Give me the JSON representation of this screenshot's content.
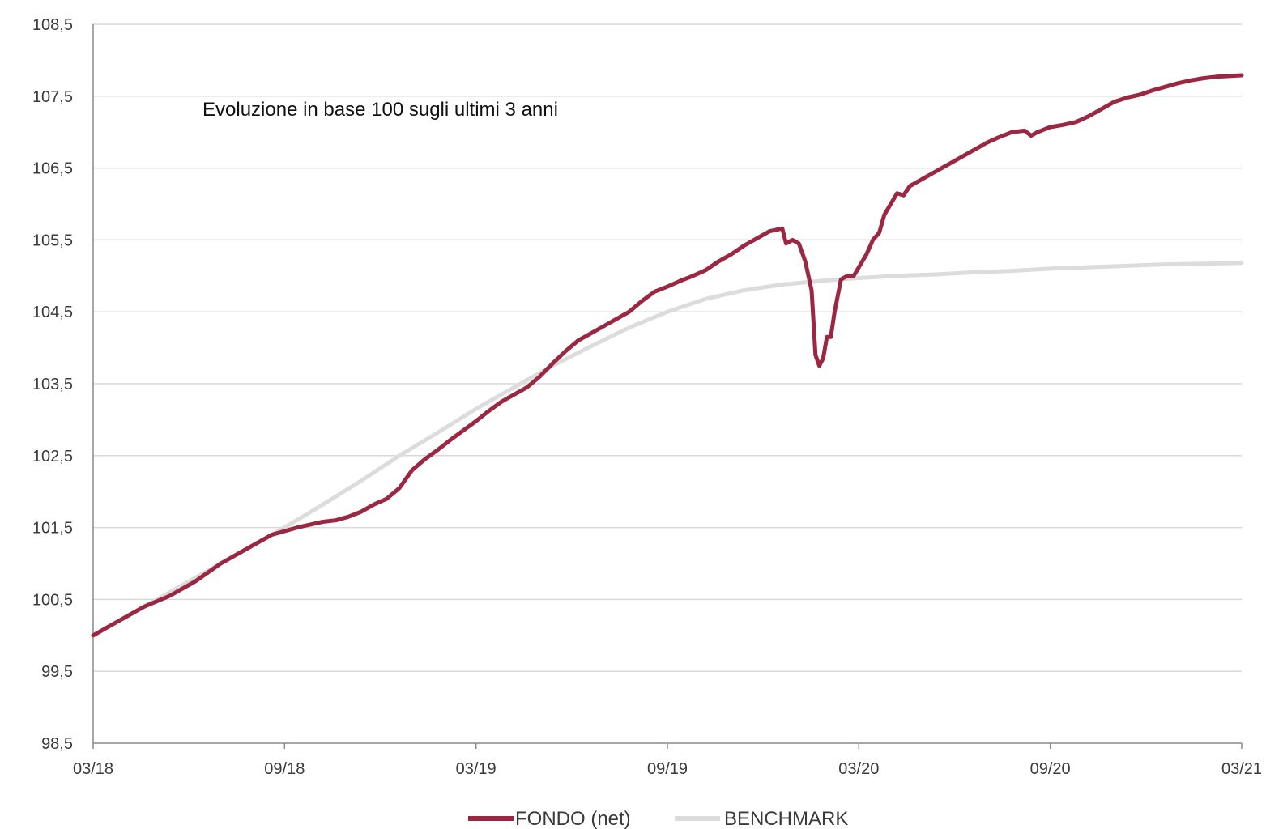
{
  "chart_data": {
    "type": "line",
    "title": "",
    "annotation": "Evoluzione in base 100 sugli ultimi 3 anni",
    "xlabel": "",
    "ylabel": "",
    "ylim": [
      98.5,
      108.5
    ],
    "yticks": [
      "108,5",
      "107,5",
      "106,5",
      "105,5",
      "104,5",
      "103,5",
      "102,5",
      "101,5",
      "100,5",
      "99,5",
      "98,5"
    ],
    "xticks": [
      "03/18",
      "09/18",
      "03/19",
      "09/19",
      "03/20",
      "09/20",
      "03/21"
    ],
    "grid": true,
    "legend_position": "bottom-center",
    "series": [
      {
        "name": "FONDO (net)",
        "color": "#9B2743",
        "points": [
          [
            0,
            100.0
          ],
          [
            2,
            100.2
          ],
          [
            4,
            100.4
          ],
          [
            6,
            100.55
          ],
          [
            8,
            100.75
          ],
          [
            10,
            101.0
          ],
          [
            12,
            101.2
          ],
          [
            14,
            101.4
          ],
          [
            16,
            101.5
          ],
          [
            18,
            101.58
          ],
          [
            19,
            101.6
          ],
          [
            20,
            101.65
          ],
          [
            21,
            101.72
          ],
          [
            22,
            101.82
          ],
          [
            23,
            101.9
          ],
          [
            24,
            102.05
          ],
          [
            25,
            102.3
          ],
          [
            26,
            102.45
          ],
          [
            27,
            102.58
          ],
          [
            28,
            102.72
          ],
          [
            29,
            102.85
          ],
          [
            30,
            102.98
          ],
          [
            31,
            103.12
          ],
          [
            32,
            103.25
          ],
          [
            33,
            103.35
          ],
          [
            34,
            103.45
          ],
          [
            35,
            103.6
          ],
          [
            36,
            103.78
          ],
          [
            37,
            103.95
          ],
          [
            38,
            104.1
          ],
          [
            39,
            104.2
          ],
          [
            40,
            104.3
          ],
          [
            41,
            104.4
          ],
          [
            42,
            104.5
          ],
          [
            43,
            104.65
          ],
          [
            44,
            104.78
          ],
          [
            45,
            104.85
          ],
          [
            46,
            104.93
          ],
          [
            47,
            105.0
          ],
          [
            48,
            105.08
          ],
          [
            49,
            105.2
          ],
          [
            50,
            105.3
          ],
          [
            51,
            105.42
          ],
          [
            52,
            105.52
          ],
          [
            53,
            105.62
          ],
          [
            54,
            105.66
          ],
          [
            54.3,
            105.45
          ],
          [
            54.8,
            105.5
          ],
          [
            55.3,
            105.45
          ],
          [
            55.8,
            105.2
          ],
          [
            56.3,
            104.8
          ],
          [
            56.6,
            103.9
          ],
          [
            56.9,
            103.75
          ],
          [
            57.2,
            103.85
          ],
          [
            57.5,
            104.15
          ],
          [
            57.8,
            104.15
          ],
          [
            58.1,
            104.5
          ],
          [
            58.6,
            104.95
          ],
          [
            59.1,
            105.0
          ],
          [
            59.6,
            105.0
          ],
          [
            60.1,
            105.15
          ],
          [
            60.6,
            105.3
          ],
          [
            61.1,
            105.5
          ],
          [
            61.6,
            105.6
          ],
          [
            62,
            105.85
          ],
          [
            62.5,
            106.0
          ],
          [
            63,
            106.15
          ],
          [
            63.5,
            106.12
          ],
          [
            64,
            106.25
          ],
          [
            65,
            106.35
          ],
          [
            66,
            106.45
          ],
          [
            67,
            106.55
          ],
          [
            68,
            106.65
          ],
          [
            69,
            106.75
          ],
          [
            70,
            106.85
          ],
          [
            71,
            106.93
          ],
          [
            72,
            107.0
          ],
          [
            73,
            107.02
          ],
          [
            73.5,
            106.95
          ],
          [
            74,
            107.0
          ],
          [
            75,
            107.07
          ],
          [
            76,
            107.1
          ],
          [
            77,
            107.14
          ],
          [
            78,
            107.22
          ],
          [
            79,
            107.32
          ],
          [
            80,
            107.42
          ],
          [
            81,
            107.48
          ],
          [
            82,
            107.52
          ],
          [
            83,
            107.58
          ],
          [
            84,
            107.63
          ],
          [
            85,
            107.68
          ],
          [
            86,
            107.72
          ],
          [
            87,
            107.75
          ],
          [
            88,
            107.77
          ],
          [
            89,
            107.78
          ],
          [
            90,
            107.79
          ]
        ]
      },
      {
        "name": "BENCHMARK",
        "color": "#DCDCDC",
        "points": [
          [
            0,
            100.0
          ],
          [
            3,
            100.3
          ],
          [
            6,
            100.6
          ],
          [
            9,
            100.9
          ],
          [
            12,
            101.2
          ],
          [
            15,
            101.5
          ],
          [
            18,
            101.82
          ],
          [
            21,
            102.15
          ],
          [
            24,
            102.5
          ],
          [
            27,
            102.82
          ],
          [
            30,
            103.15
          ],
          [
            33,
            103.45
          ],
          [
            36,
            103.75
          ],
          [
            39,
            104.02
          ],
          [
            42,
            104.28
          ],
          [
            45,
            104.5
          ],
          [
            48,
            104.68
          ],
          [
            51,
            104.8
          ],
          [
            54,
            104.88
          ],
          [
            57,
            104.93
          ],
          [
            60,
            104.97
          ],
          [
            63,
            105.0
          ],
          [
            66,
            105.02
          ],
          [
            69,
            105.05
          ],
          [
            72,
            105.07
          ],
          [
            75,
            105.1
          ],
          [
            78,
            105.12
          ],
          [
            81,
            105.14
          ],
          [
            84,
            105.16
          ],
          [
            87,
            105.17
          ],
          [
            90,
            105.18
          ]
        ]
      }
    ]
  }
}
